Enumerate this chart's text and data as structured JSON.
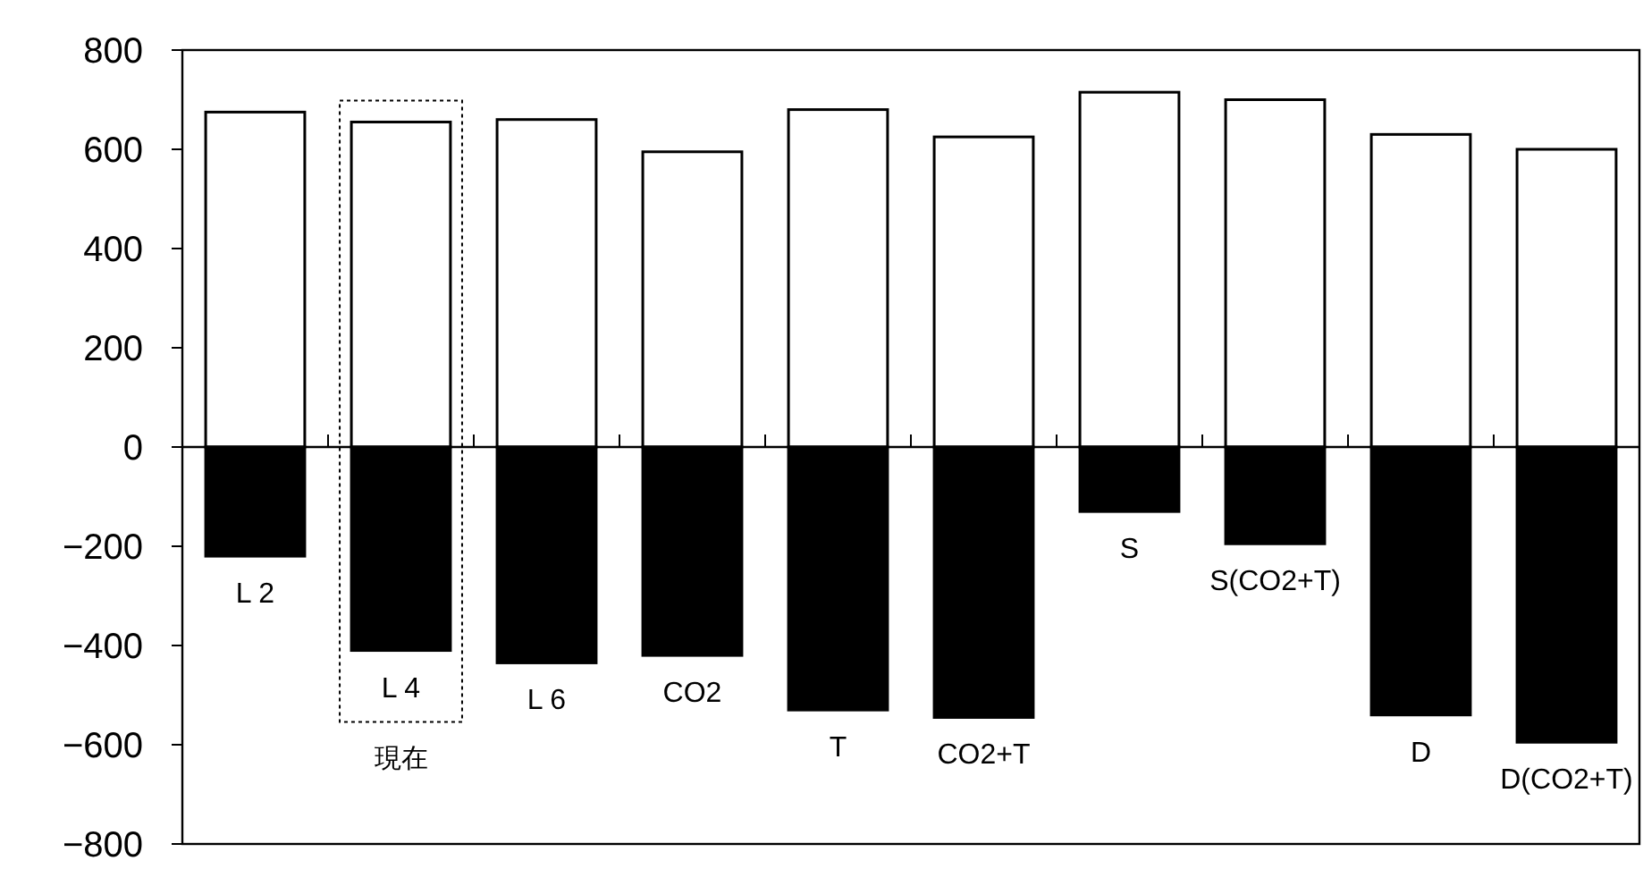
{
  "chart_data": {
    "type": "bar",
    "stacked": true,
    "categories": [
      "L 2",
      "L 4",
      "L 6",
      "CO2",
      "T",
      "CO2+T",
      "S",
      "S(CO2+T)",
      "D",
      "D(CO2+T)"
    ],
    "series": [
      {
        "color": "#ffffff",
        "values": [
          675,
          655,
          660,
          595,
          680,
          625,
          715,
          700,
          630,
          600
        ]
      },
      {
        "color": "#000000",
        "values": [
          -220,
          -410,
          -435,
          -420,
          -530,
          -545,
          -130,
          -195,
          -540,
          -595
        ]
      }
    ],
    "ylim": [
      -800,
      800
    ],
    "yticks": [
      -800,
      -600,
      -400,
      -200,
      0,
      200,
      400,
      600,
      800
    ],
    "annotations": [
      "現在"
    ]
  }
}
